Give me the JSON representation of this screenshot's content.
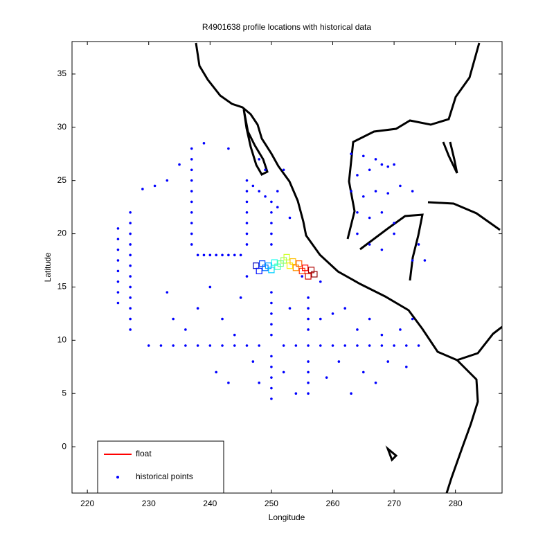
{
  "chart_data": {
    "type": "scatter",
    "title": "R4901638 profile locations with historical data",
    "xlabel": "Longitude",
    "ylabel": "Latitude",
    "xlim": [
      217.5,
      287.6
    ],
    "ylim": [
      -4.35,
      38.05
    ],
    "xticks": [
      220,
      230,
      240,
      250,
      260,
      270,
      280
    ],
    "yticks": [
      0,
      5,
      10,
      15,
      20,
      25,
      30,
      35
    ],
    "legend": "lower left",
    "series": [
      {
        "name": "float",
        "color": "#ff0000",
        "x": [
          247.5,
          248,
          248.5,
          249,
          249.5,
          250,
          250.5,
          251,
          251.5,
          252,
          252.5,
          253,
          253.5,
          254,
          254.5,
          255,
          255.5,
          256,
          256.5,
          257
        ],
        "y": [
          17,
          16.5,
          17.2,
          16.8,
          17,
          16.6,
          17.3,
          16.9,
          17.2,
          17.5,
          17.8,
          17,
          17.4,
          16.8,
          17.2,
          16.5,
          16.8,
          16,
          16.6,
          16.2
        ],
        "colors": [
          "#0000c0",
          "#0010ff",
          "#0040ff",
          "#0070ff",
          "#00a0ff",
          "#00d0ff",
          "#10ffef",
          "#40ffbf",
          "#70ff8f",
          "#a0ff5f",
          "#d0ff2f",
          "#ffef00",
          "#ffc000",
          "#ff9000",
          "#ff6000",
          "#ff3000",
          "#ff0000",
          "#d00000",
          "#b00000",
          "#900000"
        ]
      },
      {
        "name": "historical points",
        "color": "#0000ff",
        "x": [
          230,
          232,
          234,
          236,
          238,
          240,
          242,
          244,
          246,
          248,
          252,
          254,
          256,
          258,
          260,
          262,
          264,
          266,
          268,
          270,
          272,
          274,
          225,
          225,
          225,
          225,
          225,
          225,
          225,
          225,
          227,
          227,
          227,
          227,
          227,
          227,
          227,
          227,
          227,
          227,
          227,
          227,
          250,
          250,
          250,
          250,
          250,
          250,
          250,
          250,
          250,
          250,
          250,
          250,
          250,
          250,
          250,
          237,
          237,
          237,
          237,
          237,
          237,
          237,
          237,
          237,
          237,
          246,
          246,
          246,
          246,
          246,
          246,
          246,
          246,
          238,
          239,
          240,
          241,
          242,
          243,
          244,
          245,
          247,
          248,
          249,
          251,
          253,
          256,
          256,
          256,
          256,
          256,
          256,
          256,
          256,
          233,
          231,
          229,
          235,
          239,
          243,
          233,
          234,
          236,
          238,
          240,
          242,
          241,
          243,
          244,
          245,
          247,
          248,
          252,
          253,
          254,
          258,
          259,
          261,
          262,
          263,
          264,
          265,
          266,
          267,
          268,
          269,
          271,
          272,
          273,
          255,
          258,
          260,
          248,
          249,
          252,
          251,
          263,
          265,
          267,
          268,
          269,
          270,
          266,
          264,
          263,
          265,
          267,
          269,
          271,
          273,
          264,
          266,
          268,
          270,
          264,
          266,
          268,
          270,
          274,
          273,
          275
        ],
        "y": [
          9.5,
          9.5,
          9.5,
          9.5,
          9.5,
          9.5,
          9.5,
          9.5,
          9.5,
          9.5,
          9.5,
          9.5,
          9.5,
          9.5,
          9.5,
          9.5,
          9.5,
          9.5,
          9.5,
          9.5,
          9.5,
          9.5,
          13.5,
          14.5,
          15.5,
          16.5,
          17.5,
          18.5,
          19.5,
          20.5,
          11,
          12,
          13,
          14,
          15,
          16,
          17,
          18,
          19,
          20,
          21,
          22,
          4.5,
          5.5,
          6.5,
          7.5,
          8.5,
          10.5,
          11.5,
          12.5,
          13.5,
          14.5,
          19,
          20,
          21,
          22,
          23,
          19,
          20,
          21,
          22,
          23,
          24,
          25,
          26,
          27,
          28,
          16,
          19,
          20,
          21,
          22,
          23,
          24,
          25,
          18,
          18,
          18,
          18,
          18,
          18,
          18,
          18,
          24.5,
          24,
          23.5,
          22.5,
          21.5,
          5,
          6,
          7,
          8,
          11,
          12,
          13,
          14,
          25,
          24.5,
          24.2,
          26.5,
          28.5,
          28,
          14.5,
          12,
          11,
          13,
          15,
          12,
          7,
          6,
          10.5,
          14,
          8,
          6,
          7,
          13,
          5,
          12,
          6.5,
          8,
          13,
          5,
          11,
          7,
          12,
          6,
          10.5,
          8,
          11,
          7.5,
          12,
          16,
          15.5,
          12.5,
          27,
          26,
          26,
          24,
          27.5,
          27.3,
          27,
          26.5,
          26.3,
          26.5,
          26,
          25.5,
          24,
          23.5,
          24,
          23.8,
          24.5,
          24,
          22,
          21.5,
          22,
          21,
          20,
          19,
          18.5,
          20,
          19,
          17.5,
          17.5
        ]
      }
    ]
  }
}
